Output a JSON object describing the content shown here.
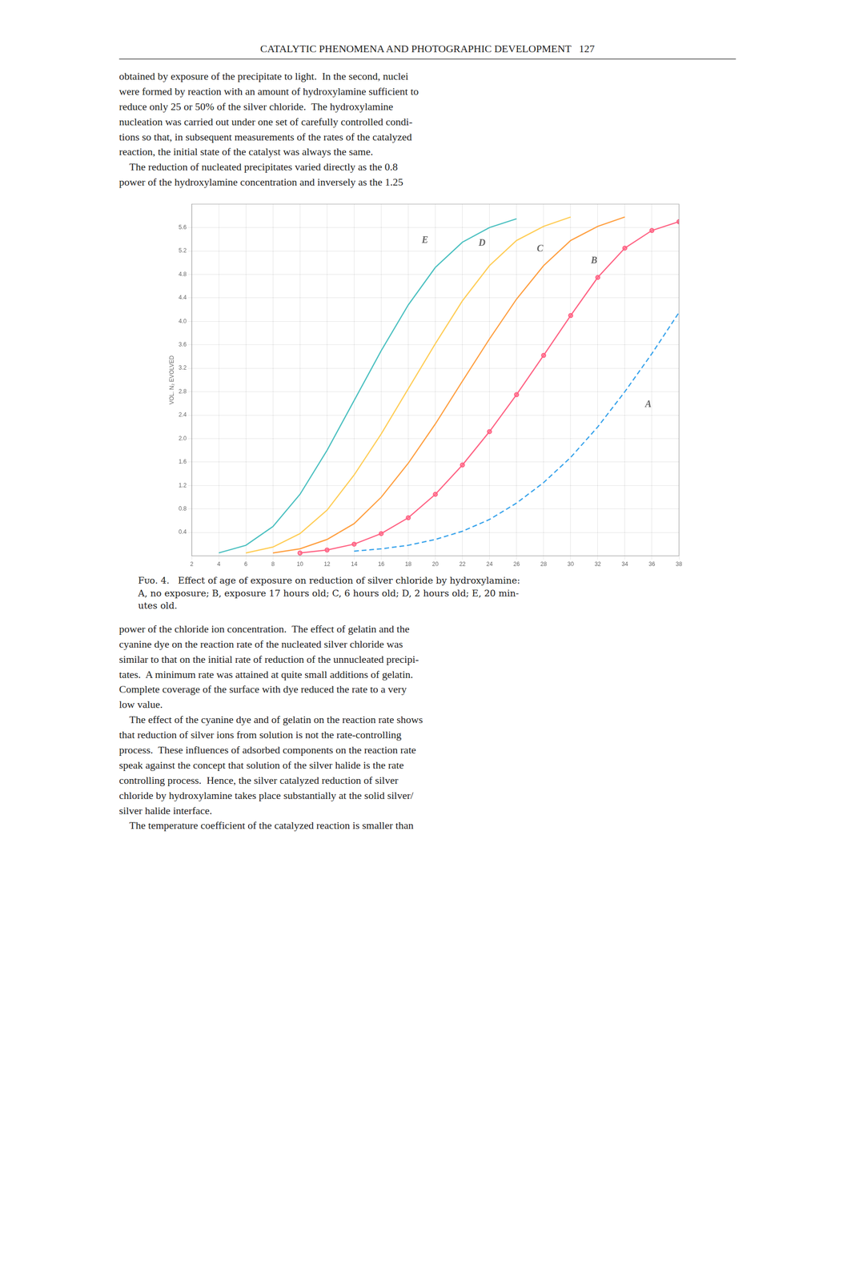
{
  "page_header": "CATALYTIC PHENOMENA AND PHOTOGRAPHIC DEVELOPMENT   127",
  "text_above": "obtained by exposure of the precipitate to light.  In the second, nuclei\nwere formed by reaction with an amount of hydroxylamine sufficient to\nreduce only 25 or 50% of the silver chloride.  The hydroxylamine\nnucleation was carried out under one set of carefully controlled condi-\ntions so that, in subsequent measurements of the rates of the catalyzed\nreaction, the initial state of the catalyst was always the same.\n    The reduction of nucleated precipitates varied directly as the 0.8\npower of the hydroxylamine concentration and inversely as the 1.25",
  "caption": "Fᴜᴏ. 4.   Effect of age of exposure on reduction of silver chloride by hydroxylamine:\nA, no exposure; B, exposure 17 hours old; C, 6 hours old; D, 2 hours old; E, 20 min-\nutes old.",
  "text_below": "power of the chloride ion concentration.  The effect of gelatin and the\ncyanine dye on the reaction rate of the nucleated silver chloride was\nsimilar to that on the initial rate of reduction of the unnucleated precipi-\ntates.  A minimum rate was attained at quite small additions of gelatin.\nComplete coverage of the surface with dye reduced the rate to a very\nlow value.\n    The effect of the cyanine dye and of gelatin on the reaction rate shows\nthat reduction of silver ions from solution is not the rate-controlling\nprocess.  These influences of adsorbed components on the reaction rate\nspeak against the concept that solution of the silver halide is the rate\ncontrolling process.  Hence, the silver catalyzed reduction of silver\nchloride by hydroxylamine takes place substantially at the solid silver/\nsilver halide interface.\n    The temperature coefficient of the catalyzed reaction is smaller than",
  "chart_data": {
    "type": "line",
    "ylabel": "VOL. N₂ EVOLVED",
    "xlim": [
      2,
      38
    ],
    "ylim": [
      0.0,
      6.0
    ],
    "xticks": [
      2,
      4,
      6,
      8,
      10,
      12,
      14,
      16,
      18,
      20,
      22,
      24,
      26,
      28,
      30,
      32,
      34,
      36,
      38
    ],
    "yticks": [
      0.4,
      0.8,
      1.2,
      1.6,
      {
        "value": 2.0,
        "label": "2.0"
      },
      2.4,
      2.8,
      3.2,
      3.6,
      {
        "value": 4.0,
        "label": "4.0"
      },
      4.4,
      4.8,
      5.2,
      5.6
    ],
    "grid": true,
    "series": [
      {
        "name": "A",
        "line_style": "dashed",
        "x": [
          14,
          16,
          18,
          20,
          22,
          24,
          26,
          28,
          30,
          32,
          34,
          36,
          38
        ],
        "values": [
          0.08,
          0.12,
          0.18,
          0.28,
          0.42,
          0.62,
          0.9,
          1.25,
          1.68,
          2.2,
          2.8,
          3.45,
          4.15
        ]
      },
      {
        "name": "B",
        "line_style": "solid",
        "marker": "circle",
        "x": [
          10,
          12,
          14,
          16,
          18,
          20,
          22,
          24,
          26,
          28,
          30,
          32,
          34,
          36,
          38
        ],
        "values": [
          0.05,
          0.1,
          0.2,
          0.38,
          0.65,
          1.05,
          1.55,
          2.12,
          2.75,
          3.42,
          4.1,
          4.75,
          5.25,
          5.55,
          5.7
        ]
      },
      {
        "name": "C",
        "line_style": "solid",
        "x": [
          8,
          10,
          12,
          14,
          16,
          18,
          20,
          22,
          24,
          26,
          28,
          30,
          32,
          34
        ],
        "values": [
          0.05,
          0.12,
          0.28,
          0.55,
          1.0,
          1.58,
          2.25,
          2.98,
          3.7,
          4.38,
          4.95,
          5.38,
          5.62,
          5.78
        ]
      },
      {
        "name": "D",
        "line_style": "solid",
        "x": [
          6,
          8,
          10,
          12,
          14,
          16,
          18,
          20,
          22,
          24,
          26,
          28,
          30
        ],
        "values": [
          0.05,
          0.15,
          0.38,
          0.78,
          1.38,
          2.08,
          2.85,
          3.62,
          4.35,
          4.95,
          5.38,
          5.62,
          5.78
        ]
      },
      {
        "name": "E",
        "line_style": "solid",
        "x": [
          4,
          6,
          8,
          10,
          12,
          14,
          16,
          18,
          20,
          22,
          24,
          26
        ],
        "values": [
          0.05,
          0.18,
          0.5,
          1.05,
          1.8,
          2.65,
          3.5,
          4.28,
          4.92,
          5.35,
          5.6,
          5.75
        ]
      }
    ],
    "annotations": [
      {
        "text": "A",
        "x": 35.5,
        "y": 2.5
      },
      {
        "text": "B",
        "x": 31.5,
        "y": 4.95
      },
      {
        "text": "C",
        "x": 27.5,
        "y": 5.15
      },
      {
        "text": "D",
        "x": 23.2,
        "y": 5.25
      },
      {
        "text": "E",
        "x": 19.0,
        "y": 5.3
      }
    ]
  }
}
